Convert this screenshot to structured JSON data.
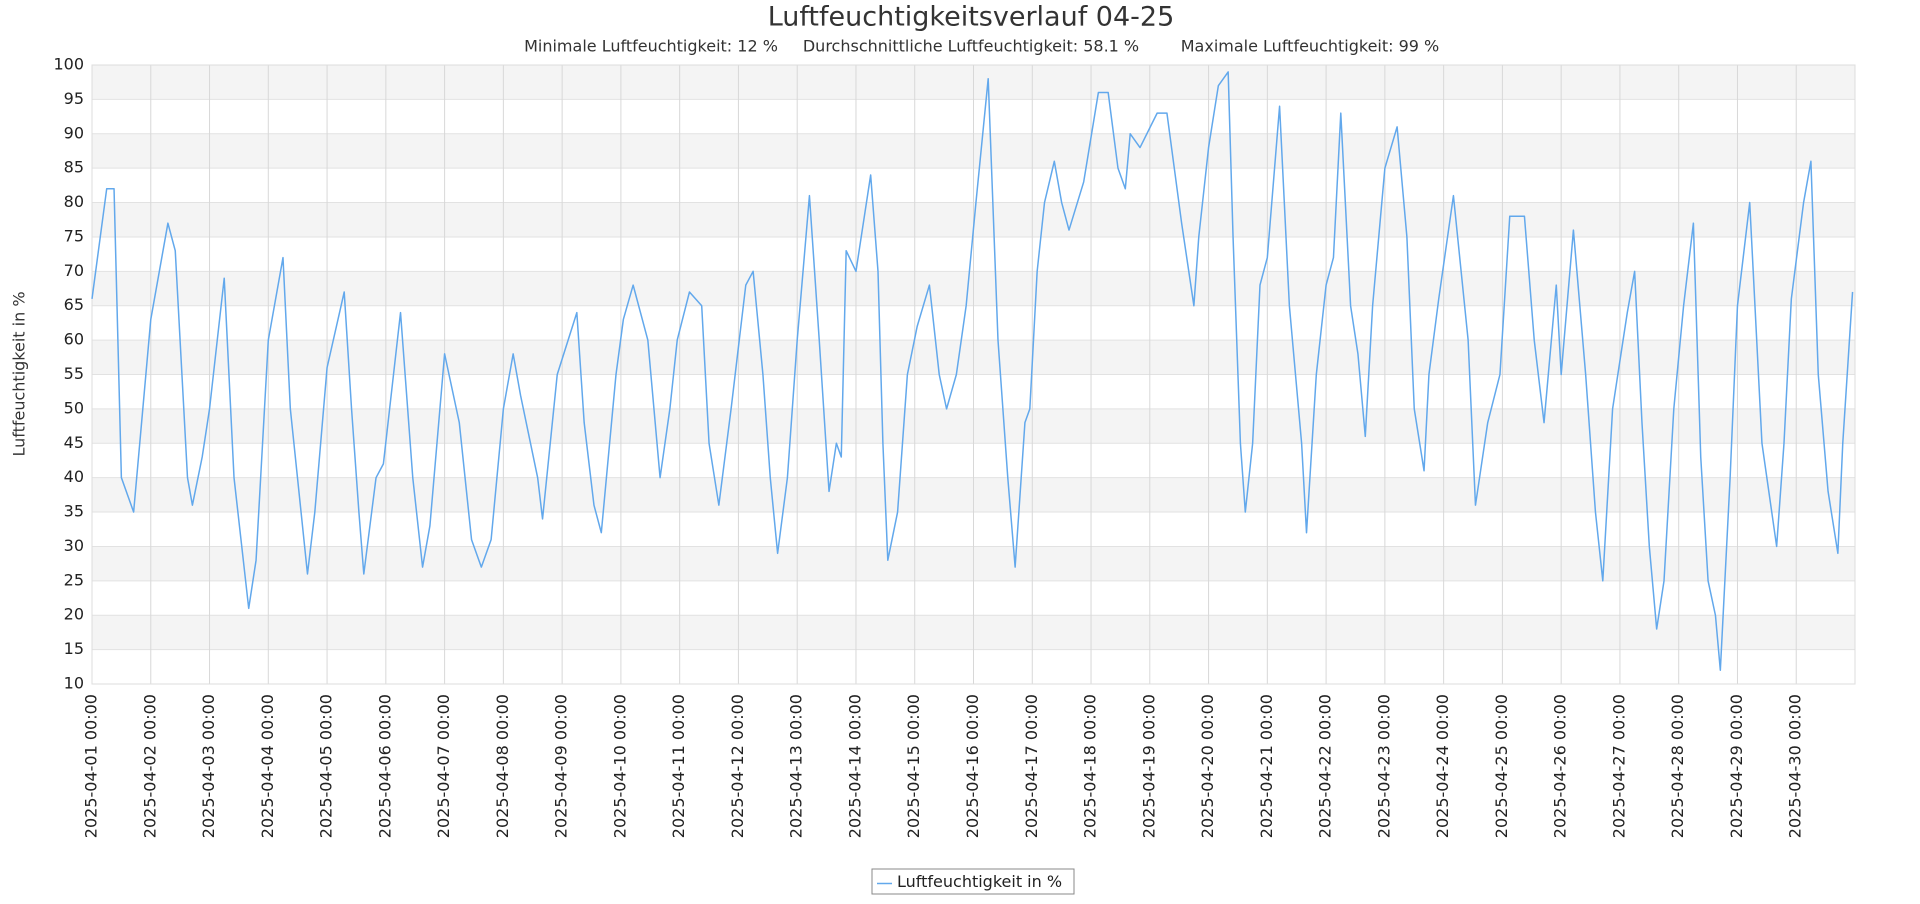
{
  "chart_data": {
    "type": "line",
    "title": "Luftfeuchtigkeitsverlauf 04-25",
    "subtitle": [
      "Minimale Luftfeuchtigkeit: 12 %",
      "Durchschnittliche Luftfeuchtigkeit: 58.1 %",
      "Maximale Luftfeuchtigkeit: 99 %"
    ],
    "y_label": "Luftfeuchtigkeit in %",
    "x": [
      "2025-04-01 00:00",
      "2025-04-01 06:00",
      "2025-04-01 09:00",
      "2025-04-01 12:00",
      "2025-04-01 17:00",
      "2025-04-02 00:00",
      "2025-04-02 07:00",
      "2025-04-02 10:00",
      "2025-04-02 15:00",
      "2025-04-02 17:00",
      "2025-04-02 21:00",
      "2025-04-03 00:00",
      "2025-04-03 06:00",
      "2025-04-03 10:00",
      "2025-04-03 16:00",
      "2025-04-03 19:00",
      "2025-04-04 00:00",
      "2025-04-04 06:00",
      "2025-04-04 09:00",
      "2025-04-04 16:00",
      "2025-04-04 19:00",
      "2025-04-05 00:00",
      "2025-04-05 07:00",
      "2025-04-05 10:00",
      "2025-04-05 13:00",
      "2025-04-05 15:00",
      "2025-04-05 20:00",
      "2025-04-05 23:00",
      "2025-04-06 06:00",
      "2025-04-06 11:00",
      "2025-04-06 15:00",
      "2025-04-06 18:00",
      "2025-04-07 00:00",
      "2025-04-07 06:00",
      "2025-04-07 11:00",
      "2025-04-07 15:00",
      "2025-04-07 19:00",
      "2025-04-08 00:00",
      "2025-04-08 04:00",
      "2025-04-08 07:00",
      "2025-04-08 14:00",
      "2025-04-08 16:00",
      "2025-04-08 22:00",
      "2025-04-09 06:00",
      "2025-04-09 09:00",
      "2025-04-09 13:00",
      "2025-04-09 16:00",
      "2025-04-09 22:00",
      "2025-04-10 01:00",
      "2025-04-10 05:00",
      "2025-04-10 11:00",
      "2025-04-10 16:00",
      "2025-04-10 20:00",
      "2025-04-10 23:00",
      "2025-04-11 04:00",
      "2025-04-11 09:00",
      "2025-04-11 12:00",
      "2025-04-11 16:00",
      "2025-04-11 21:00",
      "2025-04-12 03:00",
      "2025-04-12 06:00",
      "2025-04-12 10:00",
      "2025-04-12 13:00",
      "2025-04-12 16:00",
      "2025-04-12 20:00",
      "2025-04-13 00:00",
      "2025-04-13 05:00",
      "2025-04-13 09:00",
      "2025-04-13 13:00",
      "2025-04-13 16:00",
      "2025-04-13 18:00",
      "2025-04-13 20:00",
      "2025-04-14 00:00",
      "2025-04-14 06:00",
      "2025-04-14 09:00",
      "2025-04-14 11:00",
      "2025-04-14 13:00",
      "2025-04-14 17:00",
      "2025-04-14 21:00",
      "2025-04-15 01:00",
      "2025-04-15 06:00",
      "2025-04-15 10:00",
      "2025-04-15 13:00",
      "2025-04-15 17:00",
      "2025-04-15 21:00",
      "2025-04-16 01:00",
      "2025-04-16 06:00",
      "2025-04-16 10:00",
      "2025-04-16 14:00",
      "2025-04-16 17:00",
      "2025-04-16 21:00",
      "2025-04-16 23:00",
      "2025-04-17 02:00",
      "2025-04-17 05:00",
      "2025-04-17 09:00",
      "2025-04-17 12:00",
      "2025-04-17 15:00",
      "2025-04-17 21:00",
      "2025-04-18 03:00",
      "2025-04-18 07:00",
      "2025-04-18 11:00",
      "2025-04-18 14:00",
      "2025-04-18 16:00",
      "2025-04-18 20:00",
      "2025-04-19 03:00",
      "2025-04-19 07:00",
      "2025-04-19 10:00",
      "2025-04-19 13:00",
      "2025-04-19 18:00",
      "2025-04-19 20:00",
      "2025-04-20 00:00",
      "2025-04-20 04:00",
      "2025-04-20 08:00",
      "2025-04-20 10:00",
      "2025-04-20 13:00",
      "2025-04-20 15:00",
      "2025-04-20 18:00",
      "2025-04-20 21:00",
      "2025-04-21 00:00",
      "2025-04-21 05:00",
      "2025-04-21 09:00",
      "2025-04-21 14:00",
      "2025-04-21 16:00",
      "2025-04-21 20:00",
      "2025-04-22 00:00",
      "2025-04-22 03:00",
      "2025-04-22 06:00",
      "2025-04-22 10:00",
      "2025-04-22 13:00",
      "2025-04-22 16:00",
      "2025-04-22 19:00",
      "2025-04-23 00:00",
      "2025-04-23 05:00",
      "2025-04-23 09:00",
      "2025-04-23 12:00",
      "2025-04-23 16:00",
      "2025-04-23 18:00",
      "2025-04-23 22:00",
      "2025-04-24 04:00",
      "2025-04-24 10:00",
      "2025-04-24 13:00",
      "2025-04-24 18:00",
      "2025-04-24 23:00",
      "2025-04-25 03:00",
      "2025-04-25 09:00",
      "2025-04-25 13:00",
      "2025-04-25 17:00",
      "2025-04-25 20:00",
      "2025-04-25 22:00",
      "2025-04-26 00:00",
      "2025-04-26 05:00",
      "2025-04-26 10:00",
      "2025-04-26 14:00",
      "2025-04-26 17:00",
      "2025-04-26 21:00",
      "2025-04-27 03:00",
      "2025-04-27 06:00",
      "2025-04-27 09:00",
      "2025-04-27 12:00",
      "2025-04-27 15:00",
      "2025-04-27 18:00",
      "2025-04-27 22:00",
      "2025-04-28 02:00",
      "2025-04-28 06:00",
      "2025-04-28 09:00",
      "2025-04-28 12:00",
      "2025-04-28 15:00",
      "2025-04-28 17:00",
      "2025-04-28 21:00",
      "2025-04-29 00:00",
      "2025-04-29 05:00",
      "2025-04-29 10:00",
      "2025-04-29 14:00",
      "2025-04-29 16:00",
      "2025-04-29 19:00",
      "2025-04-29 22:00",
      "2025-04-30 03:00",
      "2025-04-30 06:00",
      "2025-04-30 09:00",
      "2025-04-30 13:00",
      "2025-04-30 17:00",
      "2025-04-30 19:00",
      "2025-04-30 23:00"
    ],
    "series": [
      {
        "name": "Luftfeuchtigkeit in %",
        "color": "#62a8ec",
        "values": [
          66,
          82,
          82,
          40,
          35,
          63,
          77,
          73,
          40,
          36,
          43,
          50,
          69,
          40,
          21,
          28,
          60,
          72,
          50,
          26,
          35,
          56,
          67,
          50,
          35,
          26,
          40,
          42,
          64,
          40,
          27,
          33,
          58,
          48,
          31,
          27,
          31,
          50,
          58,
          52,
          40,
          34,
          55,
          64,
          48,
          36,
          32,
          55,
          63,
          68,
          60,
          40,
          50,
          60,
          67,
          65,
          45,
          36,
          50,
          68,
          70,
          55,
          40,
          29,
          40,
          60,
          81,
          60,
          38,
          45,
          43,
          73,
          70,
          84,
          70,
          45,
          28,
          35,
          55,
          62,
          68,
          55,
          50,
          55,
          65,
          80,
          98,
          60,
          40,
          27,
          48,
          50,
          70,
          80,
          86,
          80,
          76,
          83,
          96,
          96,
          85,
          82,
          90,
          88,
          93,
          93,
          85,
          77,
          65,
          75,
          88,
          97,
          99,
          75,
          45,
          35,
          45,
          68,
          72,
          94,
          65,
          45,
          32,
          55,
          68,
          72,
          93,
          65,
          58,
          46,
          65,
          85,
          91,
          75,
          50,
          41,
          55,
          66,
          81,
          60,
          36,
          48,
          55,
          78,
          78,
          60,
          48,
          60,
          68,
          55,
          76,
          55,
          35,
          25,
          50,
          64,
          70,
          48,
          30,
          18,
          25,
          50,
          65,
          77,
          43,
          25,
          20,
          12,
          40,
          65,
          80,
          45,
          35,
          30,
          45,
          66,
          80,
          86,
          55,
          38,
          29,
          45,
          67
        ]
      }
    ],
    "xlim": [
      "2025-04-01 00:00",
      "2025-05-01 00:00"
    ],
    "xticks": [
      "2025-04-01 00:00",
      "2025-04-02 00:00",
      "2025-04-03 00:00",
      "2025-04-04 00:00",
      "2025-04-05 00:00",
      "2025-04-06 00:00",
      "2025-04-07 00:00",
      "2025-04-08 00:00",
      "2025-04-09 00:00",
      "2025-04-10 00:00",
      "2025-04-11 00:00",
      "2025-04-12 00:00",
      "2025-04-13 00:00",
      "2025-04-14 00:00",
      "2025-04-15 00:00",
      "2025-04-16 00:00",
      "2025-04-17 00:00",
      "2025-04-18 00:00",
      "2025-04-19 00:00",
      "2025-04-20 00:00",
      "2025-04-21 00:00",
      "2025-04-22 00:00",
      "2025-04-23 00:00",
      "2025-04-24 00:00",
      "2025-04-25 00:00",
      "2025-04-26 00:00",
      "2025-04-27 00:00",
      "2025-04-28 00:00",
      "2025-04-29 00:00",
      "2025-04-30 00:00"
    ],
    "ylim": [
      10,
      100
    ],
    "yticks": [
      10,
      15,
      20,
      25,
      30,
      35,
      40,
      45,
      50,
      55,
      60,
      65,
      70,
      75,
      80,
      85,
      90,
      95,
      100
    ],
    "grid": true,
    "legend": "bottom"
  }
}
